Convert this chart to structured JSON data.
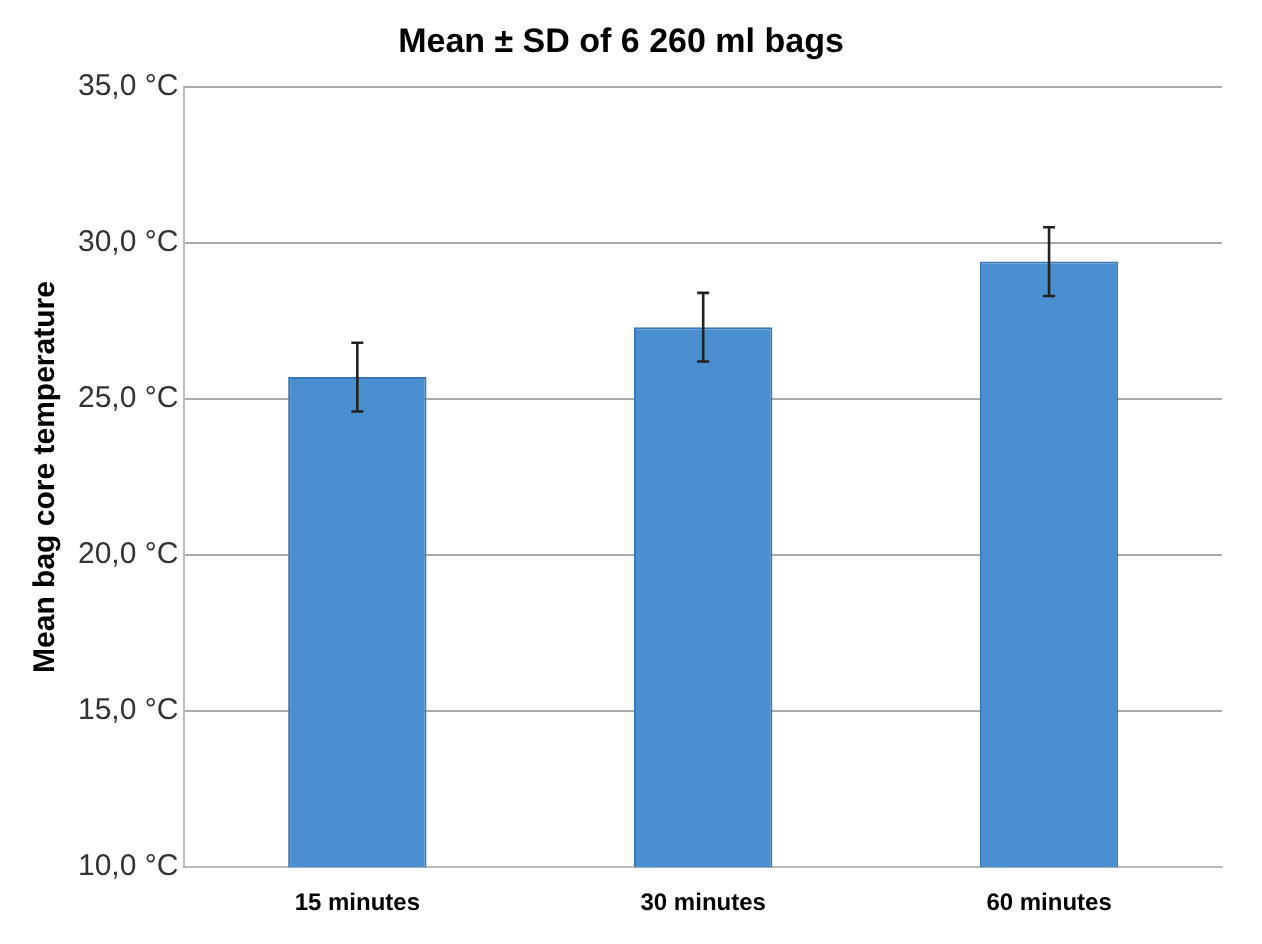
{
  "chart_data": {
    "type": "bar",
    "title": "Mean ± SD of 6 260 ml bags",
    "ylabel": "Mean bag core temperature",
    "categories": [
      "15 minutes",
      "30 minutes",
      "60 minutes"
    ],
    "values": [
      25.7,
      27.3,
      29.4
    ],
    "errors": [
      1.1,
      1.1,
      1.1
    ],
    "color": "#4a8fd0",
    "ylim": [
      10,
      35
    ],
    "yticks": [
      {
        "value": 10,
        "label": "10,0 °C"
      },
      {
        "value": 15,
        "label": "15,0 °C"
      },
      {
        "value": 20,
        "label": "20,0 °C"
      },
      {
        "value": 25,
        "label": "25,0 °C"
      },
      {
        "value": 30,
        "label": "30,0 °C"
      },
      {
        "value": 35,
        "label": "35,0 °C"
      }
    ],
    "grid": "y",
    "legend": false
  }
}
